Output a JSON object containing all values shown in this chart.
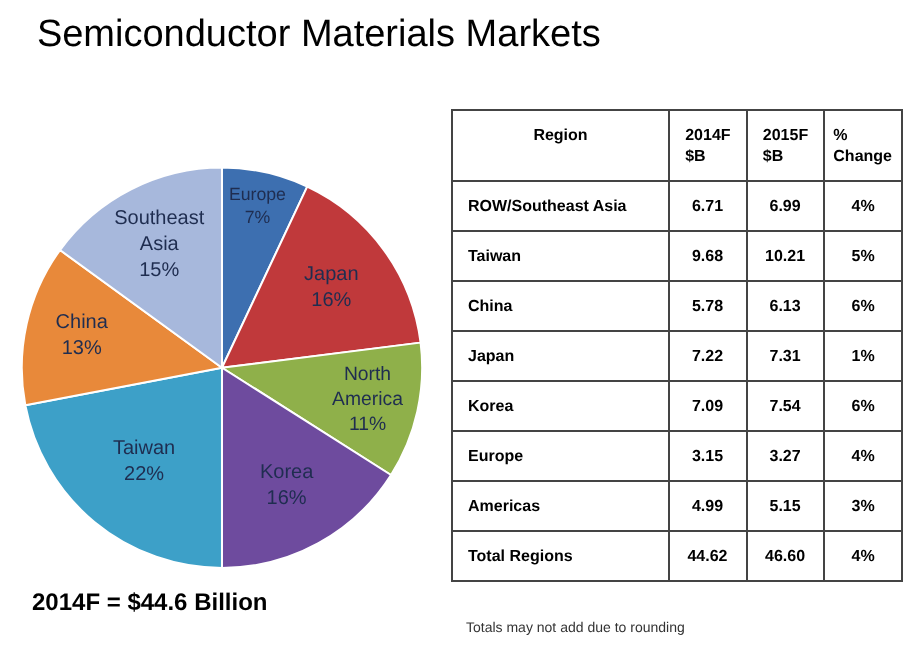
{
  "chart_data": [
    {
      "type": "pie",
      "title": "Semiconductor Materials Markets",
      "categories": [
        "Europe",
        "Japan",
        "North America",
        "Korea",
        "Taiwan",
        "China",
        "Southeast Asia"
      ],
      "values": [
        7,
        16,
        11,
        16,
        22,
        13,
        15
      ],
      "value_labels": [
        "7%",
        "16%",
        "11%",
        "16%",
        "22%",
        "13%",
        "15%"
      ],
      "colors": [
        "#3d6fb0",
        "#c0393b",
        "#8fb04a",
        "#6e4b9e",
        "#3da0c8",
        "#e8893a",
        "#a7b8dc"
      ],
      "annotations": [
        "2014F = $44.6 Billion"
      ]
    },
    {
      "type": "other",
      "categories": [
        "Region",
        "2014F $B",
        "2015F $B",
        "% Change"
      ],
      "cell_labels": [
        [
          "ROW/Southeast Asia",
          "6.71",
          "6.99",
          "4%"
        ],
        [
          "Taiwan",
          "9.68",
          "10.21",
          "5%"
        ],
        [
          "China",
          "5.78",
          "6.13",
          "6%"
        ],
        [
          "Japan",
          "7.22",
          "7.31",
          "1%"
        ],
        [
          "Korea",
          "7.09",
          "7.54",
          "6%"
        ],
        [
          "Europe",
          "3.15",
          "3.27",
          "4%"
        ],
        [
          "Americas",
          "4.99",
          "5.15",
          "3%"
        ],
        [
          "Total Regions",
          "44.62",
          "46.60",
          "4%"
        ]
      ],
      "annotations": [
        "Totals may not add due to rounding"
      ]
    }
  ]
}
